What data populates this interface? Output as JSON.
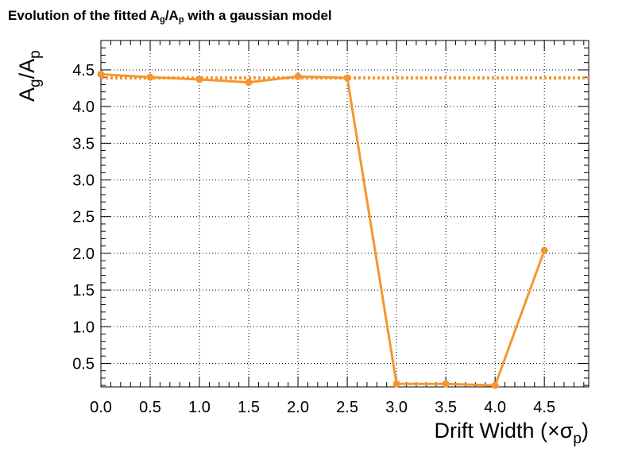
{
  "chart_data": {
    "type": "line",
    "title": "Evolution of the fitted A_g/A_p with a gaussian model",
    "title_parts": {
      "pre": "Evolution of the fitted A",
      "sub1": "g",
      "mid": "/A",
      "sub2": "p",
      "post": " with a gaussian model"
    },
    "xlabel": "Drift Width (×σ_p)",
    "xlabel_parts": {
      "main": "Drift Width (×σ",
      "sub": "p",
      "end": ")"
    },
    "ylabel": "A_g/A_p",
    "ylabel_parts": {
      "a1": "A",
      "s1": "g",
      "mid": "/A",
      "s2": "p"
    },
    "xlim": [
      0,
      4.95
    ],
    "ylim": [
      0.18,
      4.9
    ],
    "x_ticks": [
      "0.0",
      "0.5",
      "1.0",
      "1.5",
      "2.0",
      "2.5",
      "3.0",
      "3.5",
      "4.0",
      "4.5"
    ],
    "y_ticks": [
      "0.5",
      "1.0",
      "1.5",
      "2.0",
      "2.5",
      "3.0",
      "3.5",
      "4.0",
      "4.5"
    ],
    "grid": true,
    "series": [
      {
        "x": [
          0.0,
          0.5,
          1.0,
          1.5,
          2.0,
          2.5,
          3.0,
          3.5,
          4.0,
          4.5
        ],
        "y": [
          4.44,
          4.4,
          4.37,
          4.33,
          4.41,
          4.39,
          0.22,
          0.22,
          0.2,
          2.04
        ],
        "color": "#f5962f"
      }
    ],
    "reference_line": {
      "y": 4.39,
      "style": "dotted",
      "color": "#f5962f"
    }
  }
}
